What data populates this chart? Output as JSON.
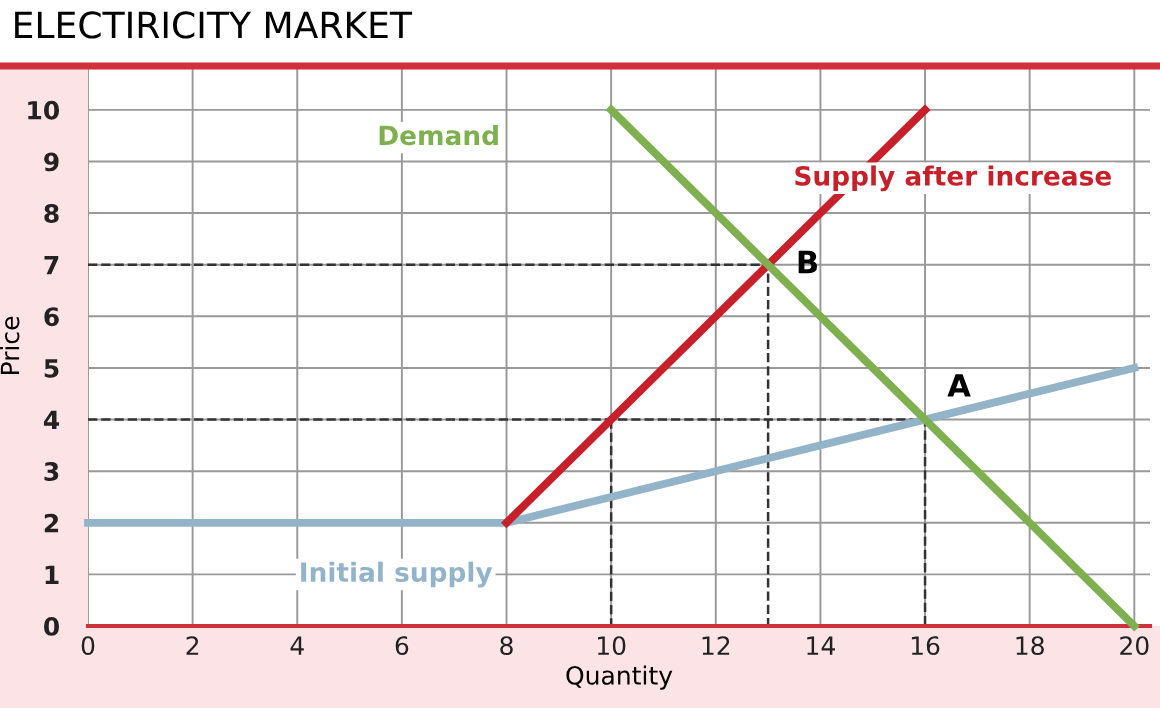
{
  "chart_data": {
    "type": "line",
    "title": "ELECTIRICITY MARKET",
    "xlabel": "Quantity",
    "ylabel": "Price",
    "series": [
      {
        "name": "Initial supply",
        "color": "#93b3c8",
        "x": [
          0,
          8,
          20
        ],
        "values": [
          2,
          2,
          5
        ]
      },
      {
        "name": "Supply after increase",
        "color": "#c8202a",
        "x": [
          8,
          16
        ],
        "values": [
          2,
          10
        ]
      },
      {
        "name": "Demand",
        "color": "#7fb050",
        "x": [
          10,
          20
        ],
        "values": [
          10,
          0
        ]
      },
      {
        "color": "#333333",
        "x": [
          0,
          13,
          13
        ],
        "values": [
          7,
          7,
          0
        ],
        "line_style": "dashed"
      },
      {
        "color": "#333333",
        "x": [
          0,
          16,
          16
        ],
        "values": [
          4,
          4,
          0
        ],
        "line_style": "dashed"
      },
      {
        "color": "#333333",
        "x": [
          10,
          10
        ],
        "values": [
          4,
          0
        ],
        "line_style": "dashed"
      }
    ],
    "annotations": [
      {
        "text": "A",
        "x": 16,
        "y": 4
      },
      {
        "text": "B",
        "x": 13,
        "y": 7
      }
    ],
    "xlim": [
      0,
      20.3
    ],
    "ylim": [
      0,
      10.85
    ],
    "xticks": [
      0,
      2,
      4,
      6,
      8,
      10,
      12,
      14,
      16,
      18,
      20
    ],
    "yticks": [
      0,
      1,
      2,
      3,
      4,
      5,
      6,
      7,
      8,
      9,
      10
    ],
    "grid": true,
    "legend": false,
    "marker": "none",
    "line_style": "solid"
  }
}
